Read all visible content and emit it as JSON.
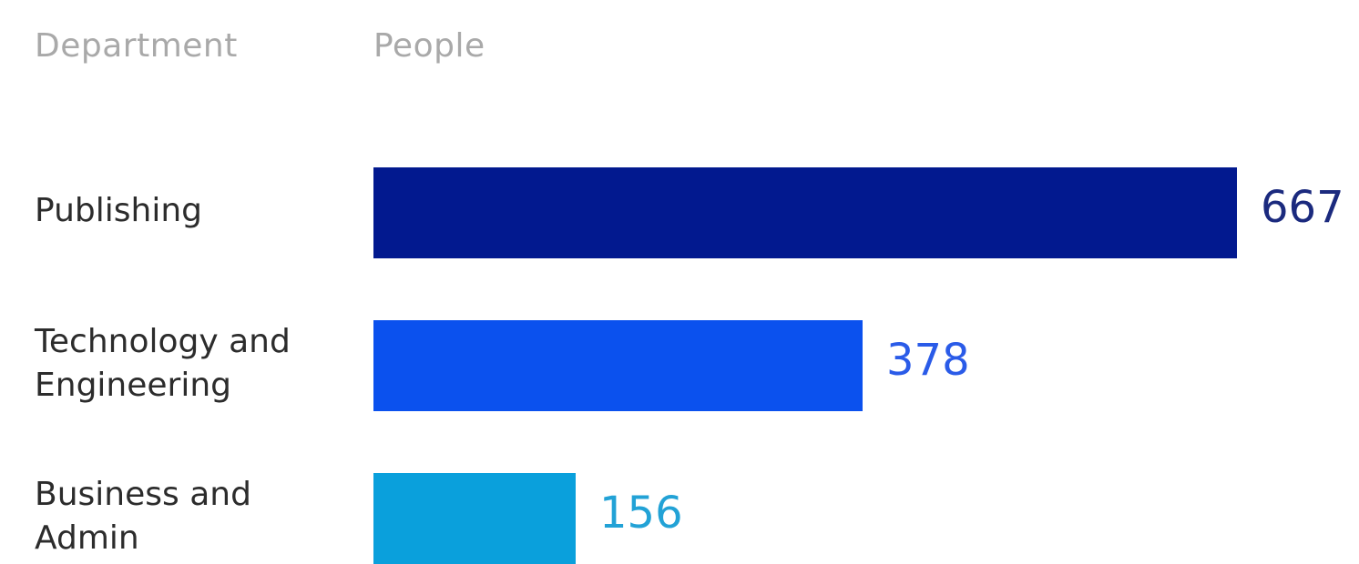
{
  "headers": {
    "department": "Department",
    "people": "People"
  },
  "chart_data": {
    "type": "bar",
    "orientation": "horizontal",
    "categories": [
      "Publishing",
      "Technology and Engineering",
      "Business and Admin"
    ],
    "category_lines": [
      [
        "Publishing"
      ],
      [
        "Technology and",
        "Engineering"
      ],
      [
        "Business and",
        "Admin"
      ]
    ],
    "values": [
      667,
      378,
      156
    ],
    "value_labels": [
      "667",
      "378",
      "156"
    ],
    "colors": [
      "#02198f",
      "#0b51ee",
      "#0aa0dc"
    ],
    "label_colors": [
      "#1b2a7e",
      "#2a5be8",
      "#22a2d6"
    ],
    "title": "",
    "xlabel": "People",
    "ylabel": "Department",
    "xlim": [
      0,
      667
    ],
    "grid": false,
    "legend": "none"
  }
}
